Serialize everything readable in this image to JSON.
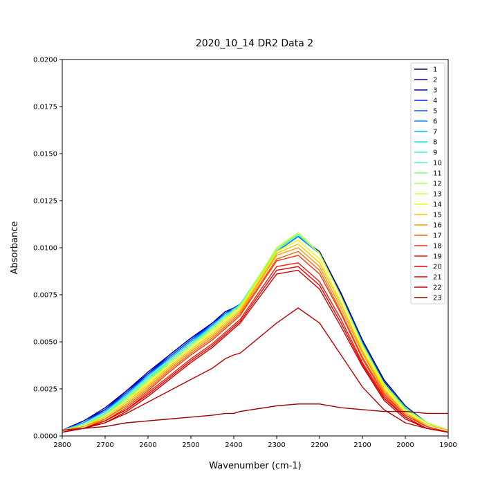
{
  "chart_data": {
    "type": "line",
    "title": "2020_10_14 DR2 Data 2",
    "xlabel": "Wavenumber (cm-1)",
    "ylabel": "Absorbance",
    "xlim": [
      2800,
      1900
    ],
    "ylim": [
      0,
      0.02
    ],
    "x_reversed": true,
    "grid": false,
    "legend_position": "top-right",
    "x_ticks": [
      2800,
      2700,
      2600,
      2500,
      2400,
      2300,
      2200,
      2100,
      2000,
      1900
    ],
    "x_tick_labels": [
      "2800",
      "2700",
      "2600",
      "2500",
      "2400",
      "2300",
      "2200",
      "2100",
      "2000",
      "1900"
    ],
    "y_ticks": [
      0,
      0.0025,
      0.005,
      0.0075,
      0.01,
      0.0125,
      0.015,
      0.0175,
      0.02
    ],
    "y_tick_labels": [
      "0.0000",
      "0.0025",
      "0.0050",
      "0.0075",
      "0.0100",
      "0.0125",
      "0.0150",
      "0.0175",
      "0.0200"
    ],
    "x": [
      2800,
      2750,
      2700,
      2650,
      2600,
      2550,
      2500,
      2450,
      2420,
      2400,
      2385,
      2300,
      2250,
      2200,
      2150,
      2100,
      2050,
      2000,
      1950,
      1900
    ],
    "series": [
      {
        "name": "1",
        "color": "#00007f",
        "values": [
          0.0003,
          0.0008,
          0.0015,
          0.0024,
          0.0034,
          0.0043,
          0.0052,
          0.006,
          0.0066,
          0.0068,
          0.007,
          0.0098,
          0.0106,
          0.0098,
          0.0076,
          0.0051,
          0.003,
          0.0016,
          0.0007,
          0.0003
        ]
      },
      {
        "name": "2",
        "color": "#0000b0",
        "values": [
          0.0003,
          0.0008,
          0.0014,
          0.0024,
          0.0033,
          0.0043,
          0.0052,
          0.006,
          0.0066,
          0.0068,
          0.007,
          0.0098,
          0.0106,
          0.0097,
          0.0075,
          0.005,
          0.0029,
          0.0015,
          0.0007,
          0.0003
        ]
      },
      {
        "name": "3",
        "color": "#0000e6",
        "values": [
          0.0003,
          0.0007,
          0.0014,
          0.0023,
          0.0033,
          0.0042,
          0.0051,
          0.006,
          0.0065,
          0.0068,
          0.007,
          0.0098,
          0.0106,
          0.0097,
          0.0075,
          0.005,
          0.0029,
          0.0015,
          0.0007,
          0.0003
        ]
      },
      {
        "name": "4",
        "color": "#0020ff",
        "values": [
          0.0003,
          0.0007,
          0.0014,
          0.0023,
          0.0033,
          0.0042,
          0.0051,
          0.0059,
          0.0065,
          0.0068,
          0.007,
          0.0098,
          0.0106,
          0.0097,
          0.0075,
          0.005,
          0.0029,
          0.0015,
          0.0007,
          0.0003
        ]
      },
      {
        "name": "5",
        "color": "#0054ff",
        "values": [
          0.0003,
          0.0007,
          0.0013,
          0.0023,
          0.0032,
          0.0042,
          0.0051,
          0.0059,
          0.0065,
          0.0068,
          0.007,
          0.0098,
          0.0106,
          0.0097,
          0.0074,
          0.0049,
          0.0028,
          0.0015,
          0.0007,
          0.0003
        ]
      },
      {
        "name": "6",
        "color": "#0088ff",
        "values": [
          0.0003,
          0.0007,
          0.0013,
          0.0022,
          0.0032,
          0.0041,
          0.005,
          0.0059,
          0.0065,
          0.0067,
          0.007,
          0.0098,
          0.0106,
          0.0097,
          0.0074,
          0.0049,
          0.0028,
          0.0015,
          0.0007,
          0.0003
        ]
      },
      {
        "name": "7",
        "color": "#00bcff",
        "values": [
          0.0003,
          0.0007,
          0.0013,
          0.0022,
          0.0032,
          0.0041,
          0.005,
          0.0058,
          0.0064,
          0.0067,
          0.007,
          0.0099,
          0.0107,
          0.0097,
          0.0074,
          0.0049,
          0.0028,
          0.0015,
          0.0007,
          0.0003
        ]
      },
      {
        "name": "8",
        "color": "#00e4f8",
        "values": [
          0.0003,
          0.0006,
          0.0012,
          0.0021,
          0.0031,
          0.004,
          0.0049,
          0.0058,
          0.0064,
          0.0067,
          0.007,
          0.0099,
          0.0107,
          0.0097,
          0.0074,
          0.0049,
          0.0028,
          0.0015,
          0.0007,
          0.0003
        ]
      },
      {
        "name": "9",
        "color": "#29ffce",
        "values": [
          0.0003,
          0.0006,
          0.0012,
          0.0021,
          0.0031,
          0.004,
          0.0049,
          0.0058,
          0.0064,
          0.0067,
          0.007,
          0.0099,
          0.0107,
          0.0097,
          0.0074,
          0.0049,
          0.0028,
          0.0015,
          0.0007,
          0.0003
        ]
      },
      {
        "name": "10",
        "color": "#53ffa4",
        "values": [
          0.0003,
          0.0006,
          0.0012,
          0.002,
          0.003,
          0.004,
          0.0049,
          0.0057,
          0.0063,
          0.0067,
          0.0069,
          0.0099,
          0.0107,
          0.0097,
          0.0074,
          0.0048,
          0.0028,
          0.0014,
          0.0007,
          0.0003
        ]
      },
      {
        "name": "11",
        "color": "#7dff7a",
        "values": [
          0.0003,
          0.0006,
          0.0011,
          0.002,
          0.003,
          0.0039,
          0.0048,
          0.0057,
          0.0063,
          0.0066,
          0.0069,
          0.0099,
          0.0108,
          0.0097,
          0.0074,
          0.0048,
          0.0028,
          0.0014,
          0.0007,
          0.0003
        ]
      },
      {
        "name": "12",
        "color": "#a4ff53",
        "values": [
          0.0003,
          0.0006,
          0.0011,
          0.002,
          0.0029,
          0.0039,
          0.0048,
          0.0057,
          0.0063,
          0.0066,
          0.0069,
          0.01,
          0.0108,
          0.0097,
          0.0074,
          0.0048,
          0.0028,
          0.0014,
          0.0007,
          0.0003
        ]
      },
      {
        "name": "13",
        "color": "#ceff29",
        "values": [
          0.0003,
          0.0005,
          0.0011,
          0.0019,
          0.0029,
          0.0038,
          0.0047,
          0.0056,
          0.0062,
          0.0066,
          0.0069,
          0.01,
          0.0108,
          0.0097,
          0.0074,
          0.0048,
          0.0027,
          0.0014,
          0.0007,
          0.0003
        ]
      },
      {
        "name": "14",
        "color": "#f8f500",
        "values": [
          0.0003,
          0.0005,
          0.001,
          0.0018,
          0.0028,
          0.0037,
          0.0046,
          0.0055,
          0.0061,
          0.0065,
          0.0068,
          0.0098,
          0.0104,
          0.0094,
          0.0071,
          0.0046,
          0.0026,
          0.0013,
          0.0006,
          0.0003
        ]
      },
      {
        "name": "15",
        "color": "#ffc400",
        "values": [
          0.0003,
          0.0005,
          0.001,
          0.0018,
          0.0027,
          0.0037,
          0.0046,
          0.0054,
          0.006,
          0.0064,
          0.0067,
          0.0097,
          0.0102,
          0.0092,
          0.007,
          0.0045,
          0.0025,
          0.0012,
          0.0006,
          0.0003
        ]
      },
      {
        "name": "16",
        "color": "#ff9400",
        "values": [
          0.0003,
          0.0005,
          0.0009,
          0.0017,
          0.0026,
          0.0036,
          0.0045,
          0.0053,
          0.0059,
          0.0063,
          0.0066,
          0.0096,
          0.01,
          0.009,
          0.0068,
          0.0044,
          0.0024,
          0.0012,
          0.0005,
          0.0002
        ]
      },
      {
        "name": "17",
        "color": "#ff6300",
        "values": [
          0.0003,
          0.0004,
          0.0009,
          0.0016,
          0.0025,
          0.0035,
          0.0044,
          0.0052,
          0.0058,
          0.0062,
          0.0065,
          0.0094,
          0.0098,
          0.0088,
          0.0066,
          0.0042,
          0.0023,
          0.0011,
          0.0005,
          0.0002
        ]
      },
      {
        "name": "18",
        "color": "#ff3000",
        "values": [
          0.0003,
          0.0004,
          0.0008,
          0.0015,
          0.0024,
          0.0034,
          0.0043,
          0.0051,
          0.0057,
          0.0061,
          0.0064,
          0.0093,
          0.0096,
          0.0086,
          0.0065,
          0.0041,
          0.0022,
          0.0011,
          0.0005,
          0.0002
        ]
      },
      {
        "name": "19",
        "color": "#ff1500",
        "values": [
          0.0003,
          0.0004,
          0.0008,
          0.0014,
          0.0023,
          0.0032,
          0.0041,
          0.0049,
          0.0055,
          0.0059,
          0.0062,
          0.009,
          0.0092,
          0.0082,
          0.0062,
          0.0039,
          0.0021,
          0.001,
          0.0004,
          0.0002
        ]
      },
      {
        "name": "20",
        "color": "#e80000",
        "values": [
          0.0003,
          0.0004,
          0.0008,
          0.0014,
          0.0022,
          0.0031,
          0.004,
          0.0048,
          0.0054,
          0.0058,
          0.0061,
          0.0088,
          0.009,
          0.008,
          0.006,
          0.0038,
          0.002,
          0.001,
          0.0004,
          0.0002
        ]
      },
      {
        "name": "21",
        "color": "#d10000",
        "values": [
          0.0003,
          0.0004,
          0.0007,
          0.0013,
          0.0021,
          0.003,
          0.0039,
          0.0047,
          0.0053,
          0.0057,
          0.006,
          0.0086,
          0.0088,
          0.0078,
          0.0058,
          0.0037,
          0.0019,
          0.0009,
          0.0004,
          0.0002
        ]
      },
      {
        "name": "22",
        "color": "#c00000",
        "values": [
          0.0002,
          0.0004,
          0.0007,
          0.0012,
          0.0018,
          0.0024,
          0.003,
          0.0036,
          0.0041,
          0.0043,
          0.0044,
          0.006,
          0.0068,
          0.006,
          0.0043,
          0.0026,
          0.0014,
          0.0007,
          0.0004,
          0.0002
        ]
      },
      {
        "name": "23",
        "color": "#9a0000",
        "values": [
          0.0002,
          0.0004,
          0.0005,
          0.0007,
          0.0008,
          0.0009,
          0.001,
          0.0011,
          0.0012,
          0.0012,
          0.0013,
          0.0016,
          0.0017,
          0.0017,
          0.0015,
          0.0014,
          0.0013,
          0.0013,
          0.0012,
          0.0012
        ]
      }
    ]
  }
}
